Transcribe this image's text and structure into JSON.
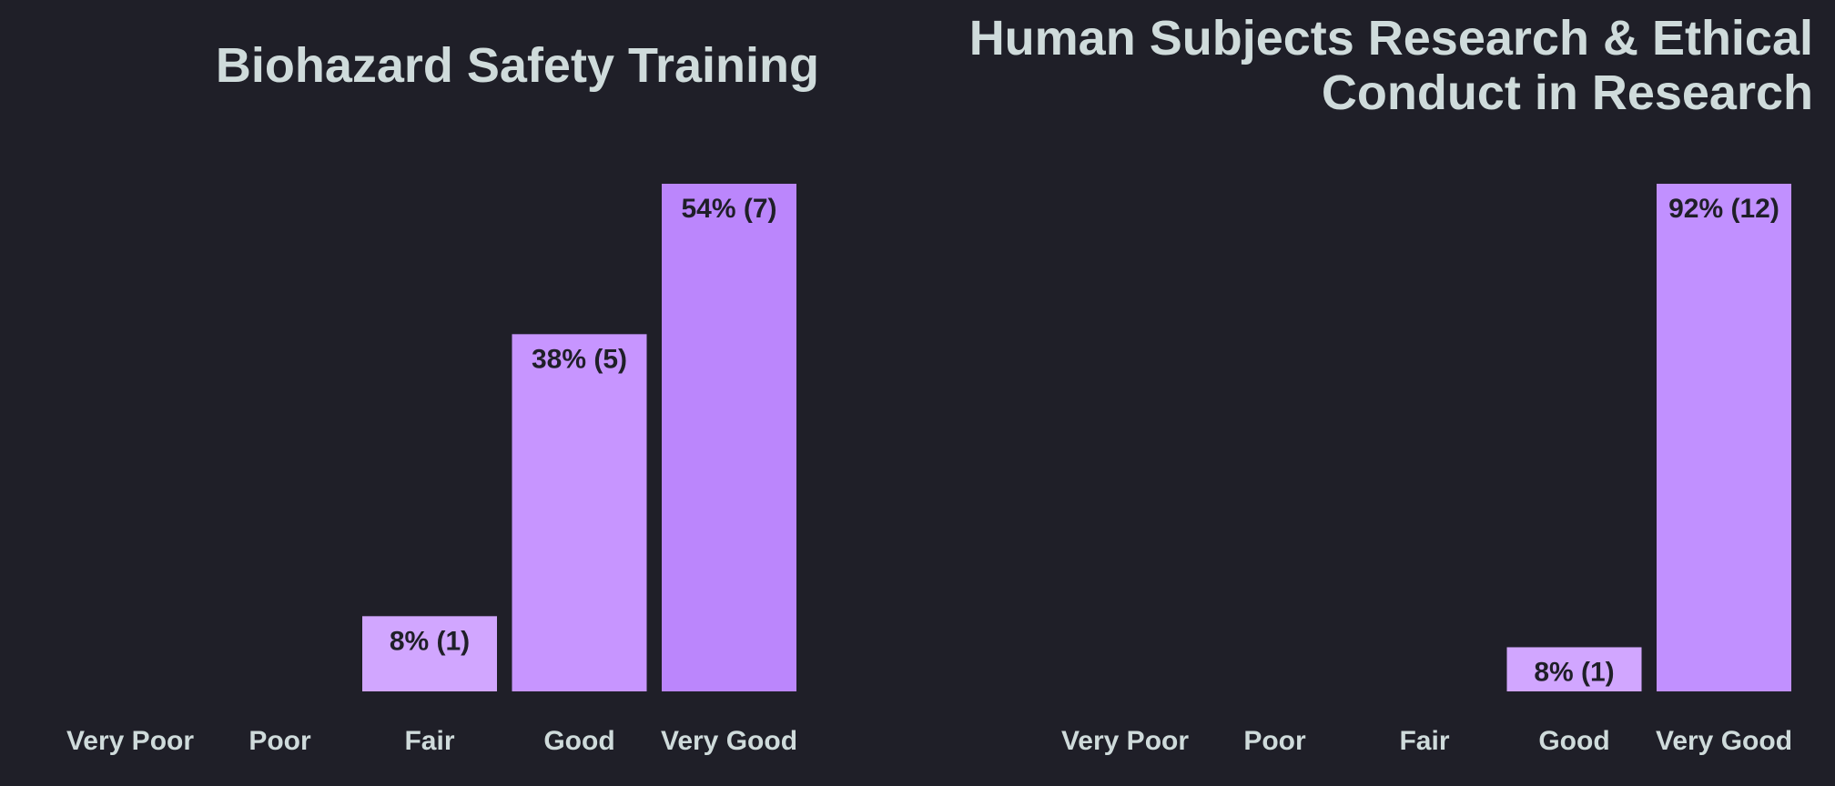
{
  "chart_data": [
    {
      "type": "bar",
      "title": "Biohazard Safety Training",
      "categories": [
        "Very Poor",
        "Poor",
        "Fair",
        "Good",
        "Very Good"
      ],
      "values": [
        0,
        0,
        8,
        38,
        54
      ],
      "counts": [
        0,
        0,
        1,
        5,
        7
      ],
      "data_labels": [
        "",
        "",
        "8% (1)",
        "38% (5)",
        "54% (7)"
      ],
      "ylim": [
        0,
        54
      ],
      "colors": [
        "#d4a9ff",
        "#d4a9ff",
        "#d1a6ff",
        "#c795ff",
        "#bb86fc"
      ],
      "grid": false,
      "legend": "none"
    },
    {
      "type": "bar",
      "title": "Human Subjects Research & Ethical Conduct in Research",
      "title_lines": [
        "Human Subjects Research & Ethical",
        "Conduct in Research"
      ],
      "categories": [
        "Very Poor",
        "Poor",
        "Fair",
        "Good",
        "Very Good"
      ],
      "values": [
        0,
        0,
        0,
        8,
        92
      ],
      "counts": [
        0,
        0,
        0,
        1,
        12
      ],
      "data_labels": [
        "",
        "",
        "",
        "8% (1)",
        "92% (12)"
      ],
      "ylim": [
        0,
        92
      ],
      "colors": [
        "#d4a9ff",
        "#d4a9ff",
        "#d4a9ff",
        "#d1a6ff",
        "#c190ff"
      ],
      "grid": false,
      "legend": "none"
    }
  ]
}
